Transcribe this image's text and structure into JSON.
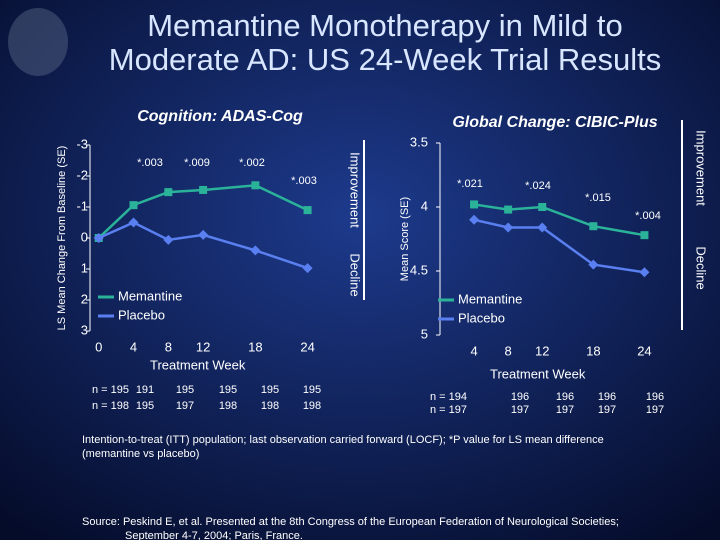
{
  "title": [
    "Memantine Monotherapy in Mild to",
    "Moderate AD: US 24-Week Trial Results"
  ],
  "chart_data": [
    {
      "type": "line",
      "title": "Cognition: ADAS-Cog",
      "y_label": "LS Mean Change From Baseline (SE)",
      "x_label": "Treatment Week",
      "y_inverted": true,
      "ylim": [
        -3,
        3
      ],
      "yticks": [
        -3,
        -2,
        -1,
        0,
        1,
        2,
        3
      ],
      "xlim": [
        -1,
        26
      ],
      "xticks": [
        0,
        4,
        8,
        12,
        18,
        24
      ],
      "x": [
        0,
        4,
        8,
        12,
        18,
        24
      ],
      "series": [
        {
          "name": "Memantine",
          "color": "#2bb39a",
          "values": [
            0,
            -1.06,
            -1.48,
            -1.55,
            -1.7,
            -0.9
          ]
        },
        {
          "name": "Placebo",
          "color": "#5a7ff0",
          "values": [
            0,
            -0.5,
            0.06,
            -0.1,
            0.4,
            0.97
          ]
        }
      ],
      "annotations": [
        "*.003",
        "*.009",
        "*.002",
        "*.003"
      ],
      "side_labels": [
        "Improvement",
        "Decline"
      ],
      "n_rows": [
        [
          "n = 195",
          "191",
          "195",
          "195",
          "195",
          "195"
        ],
        [
          "n = 198",
          "195",
          "197",
          "198",
          "198",
          "198"
        ]
      ]
    },
    {
      "type": "line",
      "title": "Global Change: CIBIC-Plus",
      "y_label": "Mean Score (SE)",
      "x_label": "Treatment Week",
      "y_inverted": true,
      "ylim": [
        3.5,
        5
      ],
      "yticks": [
        3.5,
        4,
        4.5,
        5
      ],
      "xlim": [
        0,
        27
      ],
      "xticks": [
        4,
        8,
        12,
        18,
        24
      ],
      "x": [
        4,
        8,
        12,
        18,
        24
      ],
      "series": [
        {
          "name": "Memantine",
          "color": "#2bb39a",
          "values": [
            3.98,
            4.02,
            4.0,
            4.15,
            4.22
          ]
        },
        {
          "name": "Placebo",
          "color": "#5a7ff0",
          "values": [
            4.1,
            4.16,
            4.16,
            4.45,
            4.51
          ]
        }
      ],
      "annotations": [
        "*.021",
        "*.024",
        "*.015",
        "*.004"
      ],
      "side_labels": [
        "Improvement",
        "Decline"
      ],
      "n_rows": [
        [
          "n = 194",
          "196",
          "196",
          "196",
          "196"
        ],
        [
          "n = 197",
          "197",
          "197",
          "197",
          "197"
        ]
      ]
    }
  ],
  "footnote": [
    "Intention-to-treat (ITT) population; last observation carried forward (LOCF); *P value for LS mean difference",
    "(memantine vs placebo)"
  ],
  "source": [
    "Source: Peskind E, et al. Presented at the 8th Congress of the European Federation of Neurological Societies;",
    "September 4-7, 2004; Paris, France."
  ]
}
